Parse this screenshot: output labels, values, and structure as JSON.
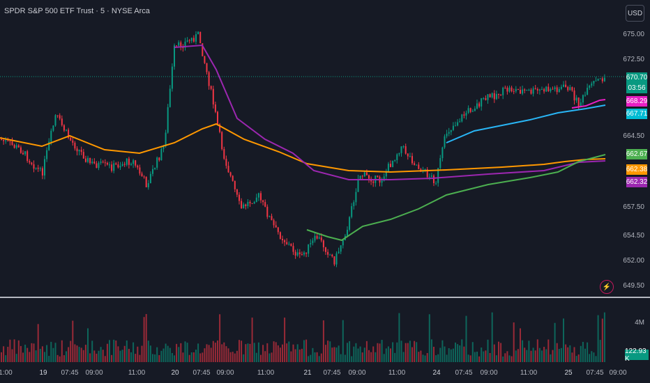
{
  "title": "SPDR S&P 500 ETF Trust · 5 · NYSE Arca",
  "currency_button": "USD",
  "price_axis": [
    "675.00",
    "672.50",
    "664.50",
    "657.50",
    "654.50",
    "652.00",
    "649.50"
  ],
  "volume_axis": [
    "4M"
  ],
  "price_badges": [
    {
      "text": "670.70",
      "color": "#089981"
    },
    {
      "text": "03:56",
      "color": "#089981"
    },
    {
      "text": "668.29",
      "color": "#e91ec4"
    },
    {
      "text": "667.71",
      "color": "#00bcd4"
    },
    {
      "text": "662.67",
      "color": "#4caf50"
    },
    {
      "text": "662.38",
      "color": "#ff9800"
    },
    {
      "text": "662.32",
      "color": "#9c27b0"
    }
  ],
  "volume_badge": {
    "text": "122.93 K",
    "color": "#089981"
  },
  "time_axis": [
    "1:00",
    "19",
    "07:45",
    "09:00",
    "11:00",
    "20",
    "07:45",
    "09:00",
    "11:00",
    "21",
    "07:45",
    "09:00",
    "11:00",
    "24",
    "07:45",
    "09:00",
    "11:00",
    "25",
    "07:45",
    "09:00"
  ],
  "colors": {
    "bg": "#161a25",
    "up": "#089981",
    "down": "#f23645",
    "orange": "#ff9800",
    "purple": "#9c27b0",
    "green": "#4caf50",
    "cyan": "#29b6f6",
    "magenta": "#e91ec4"
  },
  "icons": {
    "alert": "lightning-alert-icon"
  }
}
